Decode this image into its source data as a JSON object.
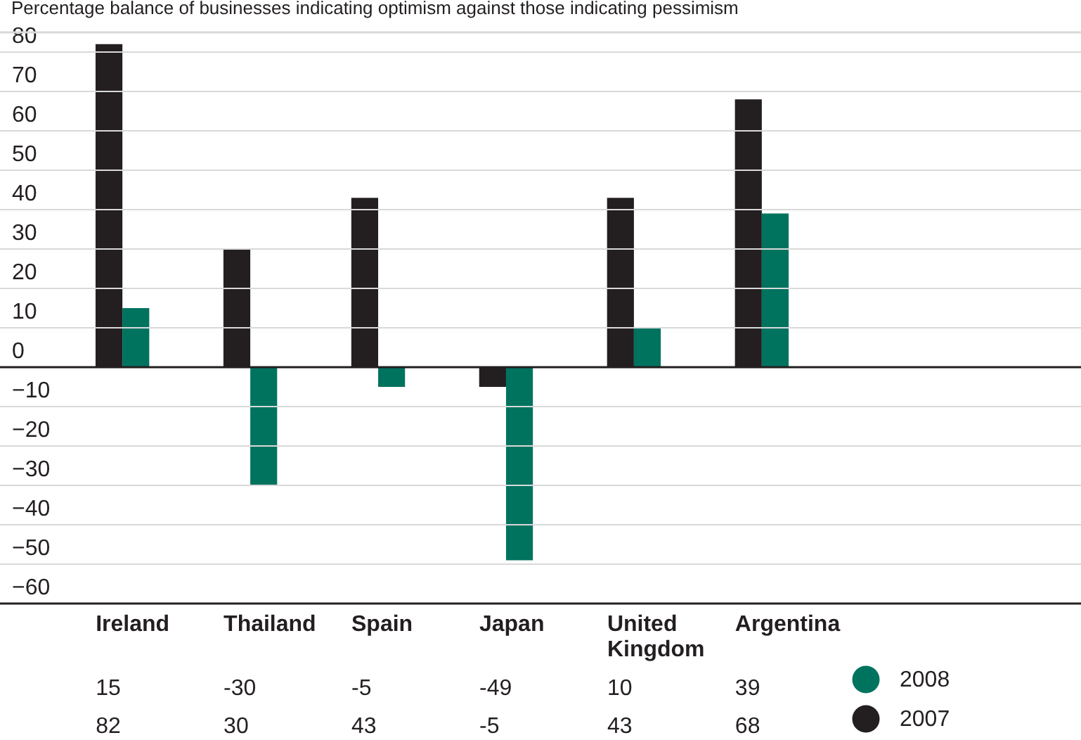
{
  "chart_data": {
    "type": "bar",
    "subtitle": "Percentage balance of businesses indicating optimism against those indicating pessimism",
    "categories": [
      "Ireland",
      "Thailand",
      "Spain",
      "Japan",
      "United Kingdom",
      "Argentina"
    ],
    "series": [
      {
        "name": "2007",
        "color": "#231f20",
        "values": [
          82,
          30,
          43,
          -5,
          43,
          68
        ]
      },
      {
        "name": "2008",
        "color": "#00735f",
        "values": [
          15,
          -30,
          -5,
          -49,
          10,
          39
        ]
      }
    ],
    "ylim": [
      -60,
      85
    ],
    "yticks": [
      -60,
      -50,
      -40,
      -30,
      -20,
      -10,
      0,
      10,
      20,
      30,
      40,
      50,
      60,
      70,
      80
    ],
    "grid": "y",
    "legend": "bottom right",
    "data_labels": true,
    "ref_lines": [
      {
        "axis": "y",
        "value": 0,
        "color": "#231f20"
      }
    ]
  }
}
